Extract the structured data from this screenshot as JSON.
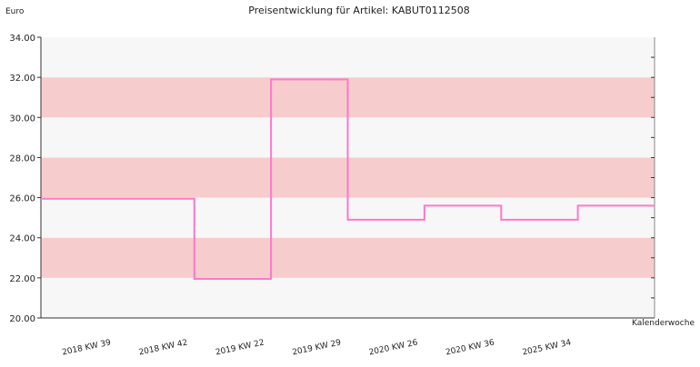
{
  "chart_data": {
    "type": "line",
    "step": true,
    "title": "Preisentwicklung für Artikel: KABUT0112508",
    "ylabel": "Euro",
    "xlabel": "Kalenderwoche",
    "ylim": [
      20,
      34
    ],
    "yticks": [
      "20.00",
      "22.00",
      "24.00",
      "26.00",
      "28.00",
      "30.00",
      "32.00",
      "34.00"
    ],
    "categories": [
      "2018 KW 39",
      "2018 KW 42",
      "2019 KW 22",
      "2019 KW 29",
      "2020 KW 26",
      "2020 KW 36",
      "2025 KW 34"
    ],
    "series": [
      {
        "values": [
          25.95,
          21.95,
          31.9,
          24.9,
          25.6,
          24.9,
          25.6
        ]
      }
    ],
    "colors": {
      "line": "#ff77cc",
      "band_light": "#f7f7f7",
      "band_dark": "#f7cccc"
    },
    "grid": false,
    "legend": "none"
  }
}
